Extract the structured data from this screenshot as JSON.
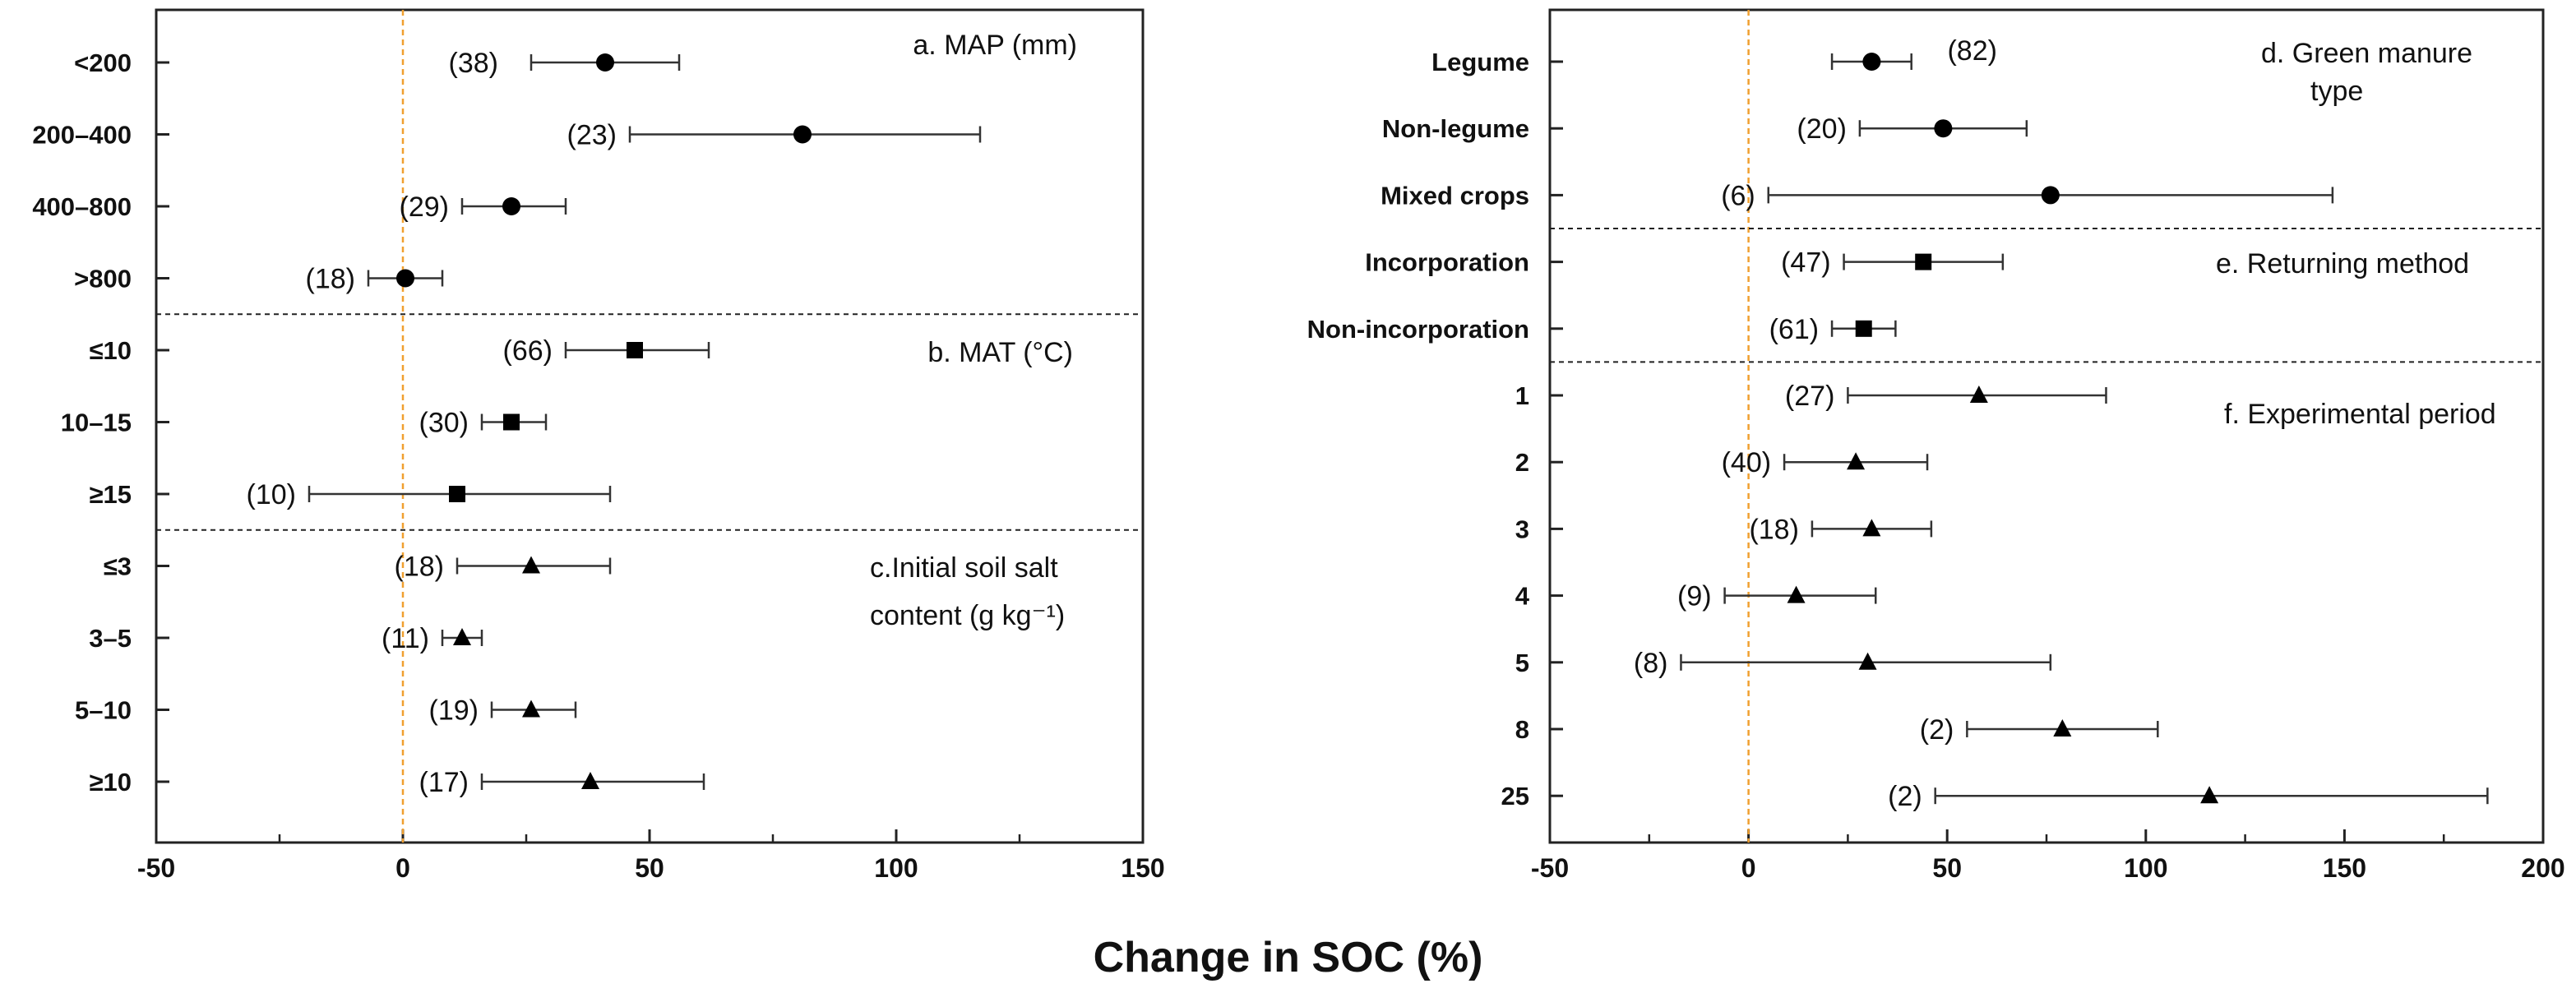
{
  "figure": {
    "xlabel": "Change in SOC (%)"
  },
  "chart_data": [
    {
      "type": "forest",
      "panel": "left",
      "xlim": [
        -50,
        150
      ],
      "xticks": [
        "-50",
        "0",
        "50",
        "100",
        "150"
      ],
      "groups": [
        {
          "title": "a. MAP (mm)",
          "marker": "circle",
          "rows": [
            {
              "label": "<200",
              "n": "(38)",
              "mean": 41,
              "lo": 26,
              "hi": 56
            },
            {
              "label": "200–400",
              "n": "(23)",
              "mean": 81,
              "lo": 46,
              "hi": 117
            },
            {
              "label": "400–800",
              "n": "(29)",
              "mean": 22,
              "lo": 12,
              "hi": 33
            },
            {
              "label": ">800",
              "n": "(18)",
              "mean": 0.5,
              "lo": -7,
              "hi": 8
            }
          ]
        },
        {
          "title": "b. MAT (°C)",
          "marker": "square",
          "rows": [
            {
              "label": "≤10",
              "n": "(66)",
              "mean": 47,
              "lo": 33,
              "hi": 62
            },
            {
              "label": "10–15",
              "n": "(30)",
              "mean": 22,
              "lo": 16,
              "hi": 29
            },
            {
              "label": "≥15",
              "n": "(10)",
              "mean": 11,
              "lo": -19,
              "hi": 42
            }
          ]
        },
        {
          "title": "c.Initial soil salt content  (g kg⁻¹)",
          "marker": "triangle",
          "rows": [
            {
              "label": "≤3",
              "n": "(18)",
              "mean": 26,
              "lo": 11,
              "hi": 42
            },
            {
              "label": "3–5",
              "n": "(11)",
              "mean": 12,
              "lo": 8,
              "hi": 16
            },
            {
              "label": "5–10",
              "n": "(19)",
              "mean": 26,
              "lo": 18,
              "hi": 35
            },
            {
              "label": "≥10",
              "n": "(17)",
              "mean": 38,
              "lo": 16,
              "hi": 61
            }
          ]
        }
      ]
    },
    {
      "type": "forest",
      "panel": "right",
      "xlim": [
        -50,
        200
      ],
      "xticks": [
        "-50",
        "0",
        "50",
        "100",
        "150",
        "200"
      ],
      "groups": [
        {
          "title": "d. Green manure type",
          "marker": "circle",
          "rows": [
            {
              "label": "Legume",
              "n": "(82)",
              "mean": 31,
              "lo": 21,
              "hi": 41
            },
            {
              "label": "Non-legume",
              "n": "(20)",
              "mean": 49,
              "lo": 28,
              "hi": 70
            },
            {
              "label": "Mixed crops",
              "n": "(6)",
              "mean": 76,
              "lo": 5,
              "hi": 147
            }
          ]
        },
        {
          "title": "e. Returning method",
          "marker": "square",
          "rows": [
            {
              "label": "Incorporation",
              "n": "(47)",
              "mean": 44,
              "lo": 24,
              "hi": 64
            },
            {
              "label": "Non-incorporation",
              "n": "(61)",
              "mean": 29,
              "lo": 21,
              "hi": 37
            }
          ]
        },
        {
          "title": "f. Experimental period",
          "marker": "triangle",
          "rows": [
            {
              "label": "1",
              "n": "(27)",
              "mean": 58,
              "lo": 25,
              "hi": 90
            },
            {
              "label": "2",
              "n": "(40)",
              "mean": 27,
              "lo": 9,
              "hi": 45
            },
            {
              "label": "3",
              "n": "(18)",
              "mean": 31,
              "lo": 16,
              "hi": 46
            },
            {
              "label": "4",
              "n": "(9)",
              "mean": 12,
              "lo": -6,
              "hi": 32
            },
            {
              "label": "5",
              "n": "(8)",
              "mean": 30,
              "lo": -17,
              "hi": 76
            },
            {
              "label": "8",
              "n": "(2)",
              "mean": 79,
              "lo": 55,
              "hi": 103
            },
            {
              "label": "25",
              "n": "(2)",
              "mean": 116,
              "lo": 47,
              "hi": 186
            }
          ]
        }
      ]
    }
  ]
}
